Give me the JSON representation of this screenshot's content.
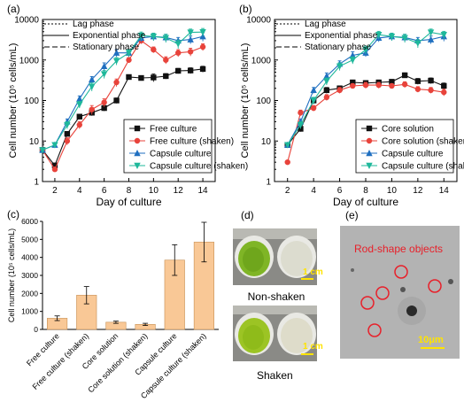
{
  "chart_data": [
    {
      "panel": "(a)",
      "type": "line",
      "ylabel": "Cell number (10⁵ cells/mL)",
      "xlabel": "Day of culture",
      "ylog": true,
      "ylim": [
        1,
        10000
      ],
      "xlim": [
        1,
        15
      ],
      "xticks": [
        2,
        4,
        6,
        8,
        10,
        12,
        14
      ],
      "yticks": [
        "1",
        "10",
        "100",
        "1000",
        "10000"
      ],
      "phase_legend": [
        "Lag phase",
        "Exponential phase",
        "Stationary phase"
      ],
      "legend": "bottom-right",
      "series": [
        {
          "name": "Free culture",
          "color": "#111111",
          "marker": "square",
          "x": [
            1,
            2,
            3,
            4,
            5,
            6,
            7,
            8,
            9,
            10,
            11,
            12,
            13,
            14
          ],
          "y": [
            6,
            2.5,
            15,
            40,
            50,
            65,
            100,
            380,
            360,
            370,
            400,
            540,
            550,
            600
          ],
          "err": [
            0,
            0,
            2,
            5,
            8,
            10,
            15,
            40,
            50,
            80,
            60,
            80,
            90,
            100
          ]
        },
        {
          "name": "Free culture (shaken)",
          "color": "#e8433b",
          "marker": "circle",
          "x": [
            1,
            2,
            3,
            4,
            5,
            6,
            7,
            8,
            9,
            10,
            11,
            12,
            13,
            14
          ],
          "y": [
            6,
            2,
            10,
            25,
            60,
            90,
            280,
            1000,
            3000,
            1800,
            1000,
            1500,
            1600,
            2100
          ],
          "err": [
            0,
            0,
            2,
            5,
            15,
            20,
            60,
            150,
            500,
            300,
            200,
            300,
            350,
            400
          ]
        },
        {
          "name": "Capsule culture",
          "color": "#1f6fc0",
          "marker": "triangle-up",
          "x": [
            1,
            2,
            3,
            4,
            5,
            6,
            7,
            8,
            9,
            10,
            11,
            12,
            13,
            14
          ],
          "y": [
            6,
            8,
            30,
            110,
            330,
            700,
            1500,
            1500,
            3500,
            3800,
            3600,
            3000,
            3200,
            3800
          ],
          "err": [
            0,
            0,
            5,
            20,
            60,
            150,
            300,
            300,
            700,
            800,
            700,
            600,
            700,
            900
          ]
        },
        {
          "name": "Capsule culture (shaken)",
          "color": "#1fb89b",
          "marker": "triangle-down",
          "x": [
            1,
            2,
            3,
            4,
            5,
            6,
            7,
            8,
            9,
            10,
            11,
            12,
            13,
            14
          ],
          "y": [
            6,
            8,
            25,
            80,
            220,
            450,
            950,
            1500,
            4000,
            3800,
            3500,
            2500,
            4800,
            4900
          ],
          "err": [
            0,
            0,
            5,
            15,
            50,
            100,
            200,
            300,
            900,
            800,
            800,
            600,
            1000,
            1100
          ]
        }
      ]
    },
    {
      "panel": "(b)",
      "type": "line",
      "ylabel": "Cell number (10⁵ cells/mL)",
      "xlabel": "Day of culture",
      "ylog": true,
      "ylim": [
        1,
        10000
      ],
      "xlim": [
        1,
        15
      ],
      "xticks": [
        2,
        4,
        6,
        8,
        10,
        12,
        14
      ],
      "yticks": [
        "1",
        "10",
        "100",
        "1000",
        "10000"
      ],
      "phase_legend": [
        "Lag phase",
        "Exponential phase",
        "Stationary phase"
      ],
      "legend": "bottom-right",
      "series": [
        {
          "name": "Core solution",
          "color": "#111111",
          "marker": "square",
          "x": [
            2,
            3,
            4,
            5,
            6,
            7,
            8,
            9,
            10,
            11,
            12,
            13,
            14
          ],
          "y": [
            8,
            20,
            100,
            180,
            200,
            280,
            270,
            280,
            290,
            420,
            300,
            310,
            230
          ],
          "err": [
            0,
            3,
            15,
            30,
            30,
            40,
            40,
            40,
            40,
            60,
            50,
            50,
            40
          ]
        },
        {
          "name": "Core solution (shaken)",
          "color": "#e8433b",
          "marker": "circle",
          "x": [
            2,
            3,
            4,
            5,
            6,
            7,
            8,
            9,
            10,
            11,
            12,
            13,
            14
          ],
          "y": [
            3,
            50,
            65,
            120,
            180,
            230,
            240,
            240,
            230,
            250,
            190,
            180,
            160
          ],
          "err": [
            0,
            8,
            10,
            20,
            30,
            30,
            40,
            40,
            30,
            40,
            30,
            30,
            30
          ]
        },
        {
          "name": "Capsule culture",
          "color": "#1f6fc0",
          "marker": "triangle-up",
          "x": [
            2,
            3,
            4,
            5,
            6,
            7,
            8,
            9,
            10,
            11,
            12,
            13,
            14
          ],
          "y": [
            8,
            30,
            180,
            400,
            800,
            1300,
            1500,
            3500,
            3800,
            3600,
            3000,
            3200,
            3800
          ],
          "err": [
            0,
            5,
            30,
            80,
            150,
            300,
            300,
            700,
            800,
            700,
            600,
            700,
            900
          ]
        },
        {
          "name": "Capsule culture (shaken)",
          "color": "#1fb89b",
          "marker": "triangle-down",
          "x": [
            2,
            3,
            4,
            5,
            6,
            7,
            8,
            9,
            10,
            11,
            12,
            13,
            14
          ],
          "y": [
            8,
            25,
            100,
            300,
            700,
            1000,
            1800,
            4200,
            3800,
            3500,
            2600,
            4800,
            4200
          ],
          "err": [
            0,
            5,
            20,
            60,
            150,
            200,
            400,
            900,
            800,
            800,
            600,
            1000,
            900
          ]
        }
      ]
    },
    {
      "panel": "(c)",
      "type": "bar",
      "ylabel": "Cell number (10⁵ cells/mL)",
      "ylim": [
        0,
        6000
      ],
      "yticks": [
        "0",
        "1000",
        "2000",
        "3000",
        "4000",
        "5000",
        "6000"
      ],
      "bar_color": "#f9c896",
      "categories": [
        "Free culture",
        "Free culture (shaken)",
        "Core solution",
        "Core solution (shaken)",
        "Capsule culture",
        "Capsule culture (shaken)"
      ],
      "values": [
        620,
        1900,
        400,
        280,
        3850,
        4850
      ],
      "err": [
        130,
        480,
        60,
        60,
        850,
        1100
      ]
    }
  ],
  "panels": {
    "a_label": "(a)",
    "b_label": "(b)",
    "c_label": "(c)",
    "d_label": "(d)",
    "e_label": "(e)",
    "d_scale_top": "1 cm",
    "d_scale_bottom": "1 cm",
    "d_caption_top": "Non-shaken",
    "d_caption_bottom": "Shaken",
    "e_title": "Rod-shape objects",
    "e_scale": "10μm",
    "annotation_color": "#e8202a"
  }
}
